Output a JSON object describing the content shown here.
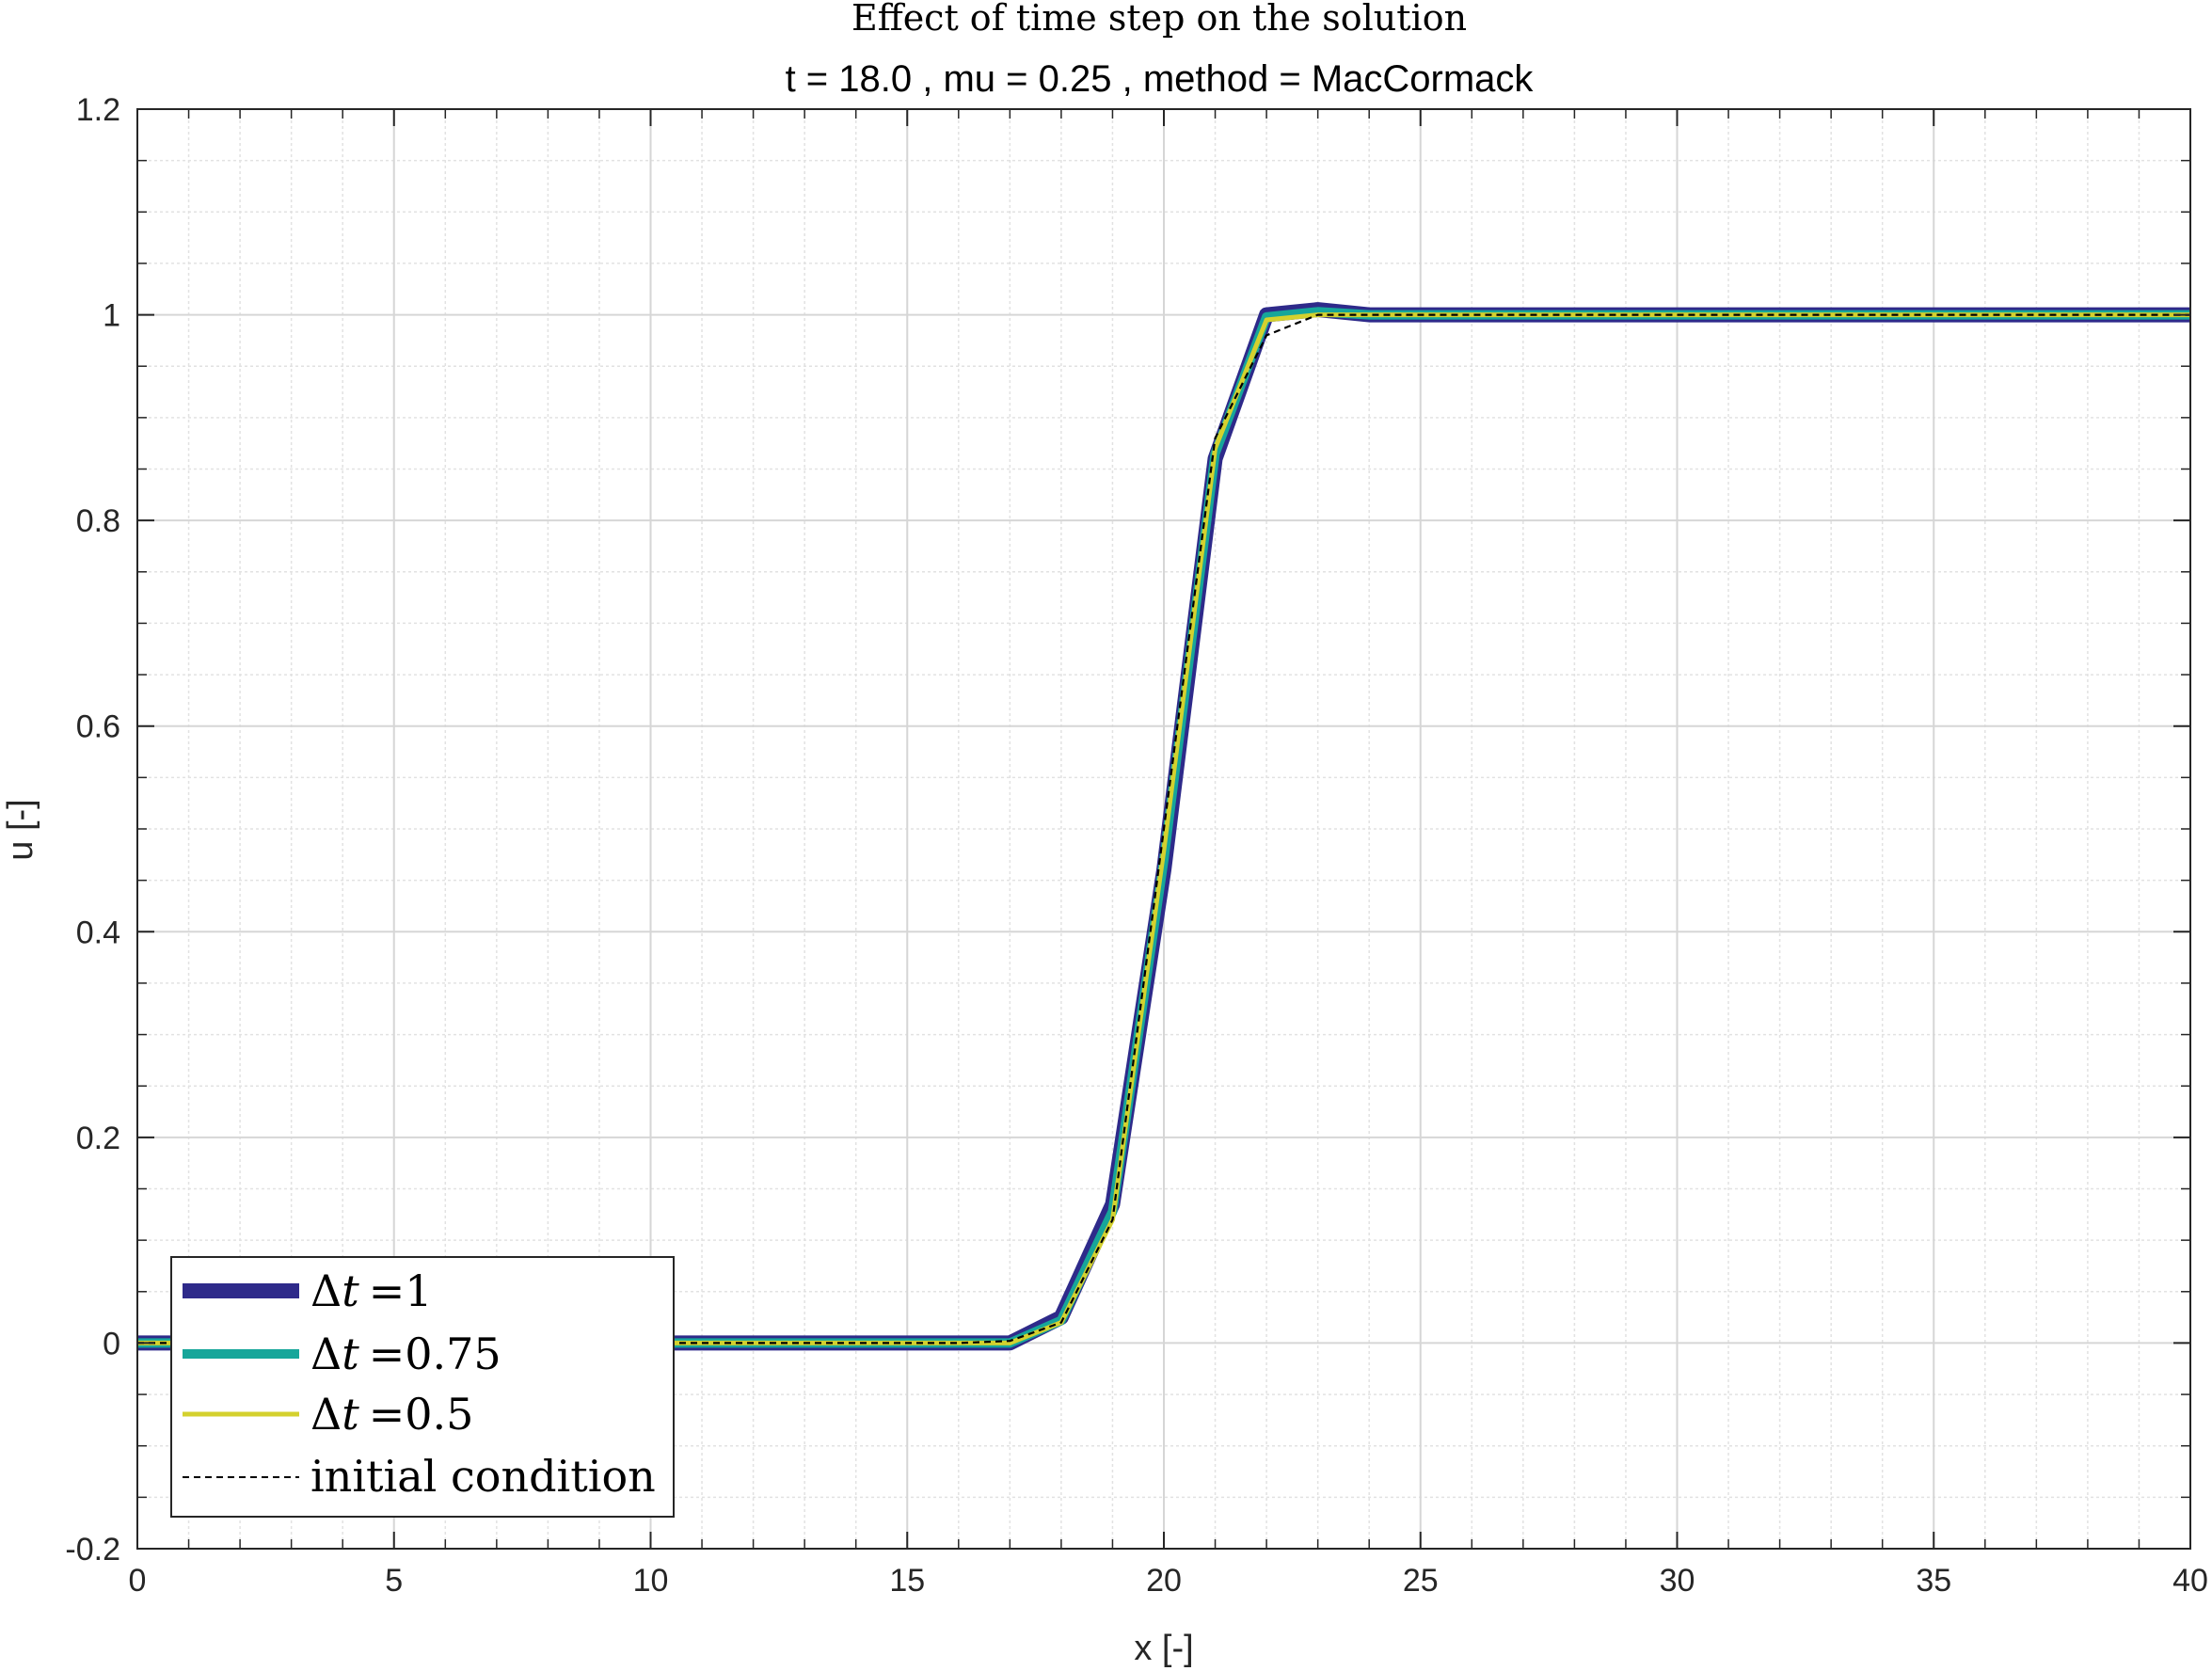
{
  "chart_data": {
    "type": "line",
    "title": "Effect of time step on the solution",
    "subtitle": "t = 18.0 , mu = 0.25 , method = MacCormack",
    "xlabel": "x [-]",
    "ylabel": "u [-]",
    "xlim": [
      0,
      40
    ],
    "ylim": [
      -0.2,
      1.2
    ],
    "xticks": [
      0,
      5,
      10,
      15,
      20,
      25,
      30,
      35,
      40
    ],
    "xtick_labels": [
      "0",
      "5",
      "10",
      "15",
      "20",
      "25",
      "30",
      "35",
      "40"
    ],
    "yticks": [
      -0.2,
      0,
      0.2,
      0.4,
      0.6,
      0.8,
      1,
      1.2
    ],
    "ytick_labels": [
      "-0.2",
      "0",
      "0.2",
      "0.4",
      "0.6",
      "0.8",
      "1",
      "1.2"
    ],
    "grid": true,
    "minor_grid": true,
    "legend_position": "bottom-left",
    "series": [
      {
        "name": "Δt =1",
        "legend_symbol": "Δ",
        "legend_var": "t",
        "legend_value": "=1",
        "color": "#2e2a8a",
        "style": "solid",
        "x": [
          0,
          1,
          2,
          3,
          4,
          5,
          6,
          7,
          8,
          9,
          10,
          11,
          12,
          13,
          14,
          15,
          16,
          17,
          18,
          19,
          20,
          21,
          22,
          23,
          24,
          25,
          26,
          27,
          28,
          29,
          30,
          31,
          32,
          33,
          34,
          35,
          36,
          37,
          38,
          39,
          40
        ],
        "y": [
          0,
          0,
          0,
          0,
          0,
          0,
          0,
          0,
          0,
          0,
          0,
          0,
          0,
          0,
          0,
          0,
          0,
          0,
          0.025,
          0.135,
          0.46,
          0.86,
          1.0,
          1.005,
          1.0,
          1.0,
          1.0,
          1.0,
          1.0,
          1.0,
          1.0,
          1.0,
          1.0,
          1.0,
          1.0,
          1.0,
          1.0,
          1.0,
          1.0,
          1.0,
          1.0
        ]
      },
      {
        "name": "Δt =0.75",
        "legend_symbol": "Δ",
        "legend_var": "t",
        "legend_value": "=0.75",
        "color": "#16a69a",
        "style": "solid",
        "x": [
          0,
          1,
          2,
          3,
          4,
          5,
          6,
          7,
          8,
          9,
          10,
          11,
          12,
          13,
          14,
          15,
          16,
          17,
          18,
          19,
          20,
          21,
          22,
          23,
          24,
          25,
          26,
          27,
          28,
          29,
          30,
          31,
          32,
          33,
          34,
          35,
          36,
          37,
          38,
          39,
          40
        ],
        "y": [
          0,
          0,
          0,
          0,
          0,
          0,
          0,
          0,
          0,
          0,
          0,
          0,
          0,
          0,
          0,
          0,
          0,
          0,
          0.022,
          0.128,
          0.47,
          0.865,
          0.998,
          1.003,
          1.0,
          1.0,
          1.0,
          1.0,
          1.0,
          1.0,
          1.0,
          1.0,
          1.0,
          1.0,
          1.0,
          1.0,
          1.0,
          1.0,
          1.0,
          1.0,
          1.0
        ]
      },
      {
        "name": "Δt =0.5",
        "legend_symbol": "Δ",
        "legend_var": "t",
        "legend_value": "=0.5",
        "color": "#d4d12e",
        "style": "solid",
        "x": [
          0,
          1,
          2,
          3,
          4,
          5,
          6,
          7,
          8,
          9,
          10,
          11,
          12,
          13,
          14,
          15,
          16,
          17,
          18,
          19,
          20,
          21,
          22,
          23,
          24,
          25,
          26,
          27,
          28,
          29,
          30,
          31,
          32,
          33,
          34,
          35,
          36,
          37,
          38,
          39,
          40
        ],
        "y": [
          0,
          0,
          0,
          0,
          0,
          0,
          0,
          0,
          0,
          0,
          0,
          0,
          0,
          0,
          0,
          0,
          0,
          0,
          0.02,
          0.12,
          0.48,
          0.87,
          0.995,
          1.0,
          1.0,
          1.0,
          1.0,
          1.0,
          1.0,
          1.0,
          1.0,
          1.0,
          1.0,
          1.0,
          1.0,
          1.0,
          1.0,
          1.0,
          1.0,
          1.0,
          1.0
        ]
      },
      {
        "name": "initial condition",
        "color": "#000000",
        "style": "dashed",
        "x": [
          0,
          1,
          2,
          3,
          4,
          5,
          6,
          7,
          8,
          9,
          10,
          11,
          12,
          13,
          14,
          15,
          16,
          17,
          18,
          19,
          20,
          21,
          22,
          23,
          24,
          25,
          26,
          27,
          28,
          29,
          30,
          31,
          32,
          33,
          34,
          35,
          36,
          37,
          38,
          39,
          40
        ],
        "y": [
          0,
          0,
          0,
          0,
          0,
          0,
          0,
          0,
          0,
          0,
          0,
          0,
          0,
          0,
          0,
          0,
          0,
          0.002,
          0.02,
          0.12,
          0.5,
          0.88,
          0.98,
          1.0,
          1.0,
          1.0,
          1.0,
          1.0,
          1.0,
          1.0,
          1.0,
          1.0,
          1.0,
          1.0,
          1.0,
          1.0,
          1.0,
          1.0,
          1.0,
          1.0,
          1.0
        ]
      }
    ]
  }
}
